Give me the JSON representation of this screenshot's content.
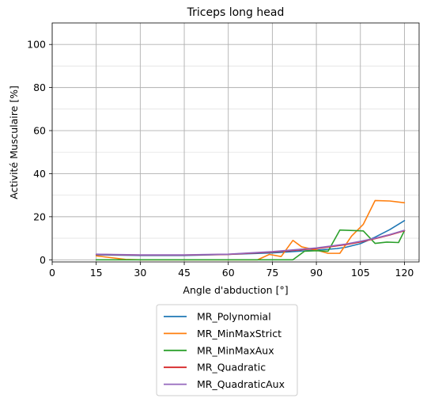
{
  "chart_data": {
    "type": "line",
    "title": "Triceps long head",
    "xlabel": "Angle d'abduction [°]",
    "ylabel": "Activité Musculaire [%]",
    "xlim": [
      0,
      125
    ],
    "ylim": [
      -1,
      110
    ],
    "xticks": [
      0,
      15,
      30,
      45,
      60,
      75,
      90,
      105,
      120
    ],
    "yticks": [
      0,
      20,
      40,
      60,
      80,
      100
    ],
    "grid": "major and minor",
    "legend_position": "below",
    "series": [
      {
        "name": "MR_Polynomial",
        "color": "#1f77b4",
        "x": [
          15,
          30,
          45,
          60,
          75,
          90,
          97,
          100,
          105,
          110,
          115,
          120
        ],
        "y": [
          2.3,
          2.0,
          2.0,
          2.5,
          3.2,
          4.5,
          5.2,
          5.8,
          7.5,
          10.5,
          14.0,
          18.2
        ]
      },
      {
        "name": "MR_MinMaxStrict",
        "color": "#ff7f0e",
        "x": [
          15,
          25,
          30,
          45,
          60,
          70,
          74,
          78,
          82,
          85,
          90,
          94,
          98,
          102,
          106,
          110,
          115,
          120
        ],
        "y": [
          1.8,
          0.2,
          0.0,
          0.0,
          0.0,
          0.0,
          2.5,
          1.5,
          9.0,
          6.0,
          4.5,
          3.0,
          3.0,
          11.0,
          16.5,
          27.5,
          27.3,
          26.5
        ]
      },
      {
        "name": "MR_MinMaxAux",
        "color": "#2ca02c",
        "x": [
          15,
          30,
          45,
          60,
          75,
          80,
          82,
          86,
          90,
          94,
          98,
          106,
          110,
          114,
          118,
          120
        ],
        "y": [
          0.0,
          0.0,
          0.0,
          0.0,
          0.0,
          0.0,
          0.0,
          4.0,
          4.2,
          4.0,
          13.8,
          13.4,
          7.6,
          8.2,
          8.0,
          13.5
        ]
      },
      {
        "name": "MR_Quadratic",
        "color": "#d62728",
        "x": [
          15,
          30,
          45,
          60,
          75,
          90,
          100,
          105,
          110,
          115,
          120
        ],
        "y": [
          2.5,
          2.2,
          2.2,
          2.5,
          3.6,
          5.2,
          7.0,
          8.3,
          9.8,
          11.5,
          13.5
        ]
      },
      {
        "name": "MR_QuadraticAux",
        "color": "#9467bd",
        "x": [
          15,
          30,
          45,
          60,
          75,
          90,
          100,
          105,
          110,
          115,
          120
        ],
        "y": [
          2.6,
          2.3,
          2.3,
          2.6,
          3.8,
          5.5,
          7.3,
          8.6,
          10.0,
          11.7,
          13.7
        ]
      }
    ]
  }
}
